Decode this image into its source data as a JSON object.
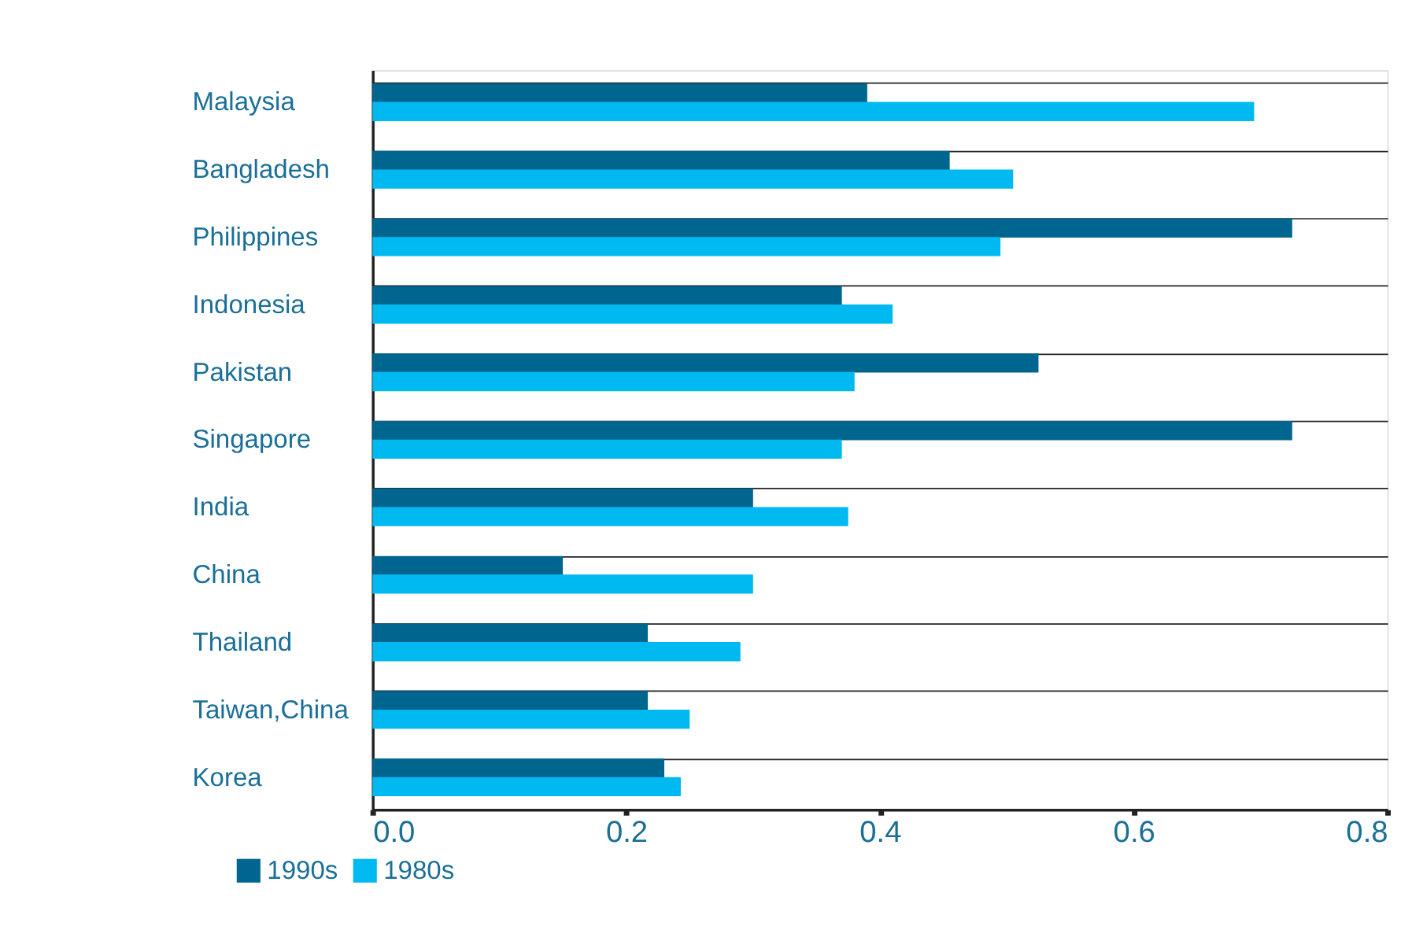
{
  "chart_data": {
    "type": "bar",
    "orientation": "horizontal",
    "categories": [
      "Malaysia",
      "Bangladesh",
      "Philippines",
      "Indonesia",
      "Pakistan",
      "Singapore",
      "India",
      "China",
      "Thailand",
      "Taiwan,China",
      "Korea"
    ],
    "series": [
      {
        "name": "1990s",
        "color": "#00668f",
        "values": [
          0.39,
          0.455,
          0.725,
          0.37,
          0.525,
          0.725,
          0.3,
          0.15,
          0.217,
          0.217,
          0.23
        ]
      },
      {
        "name": "1980s",
        "color": "#00b9f0",
        "values": [
          0.695,
          0.505,
          0.495,
          0.41,
          0.38,
          0.37,
          0.375,
          0.3,
          0.29,
          0.25,
          0.243
        ]
      }
    ],
    "xlim": [
      0,
      0.8
    ],
    "xticks": [
      {
        "value": 0,
        "label": "0.0"
      },
      0.2,
      0.4,
      0.6,
      0.8
    ],
    "grid": "y",
    "legend": "bottom left"
  }
}
